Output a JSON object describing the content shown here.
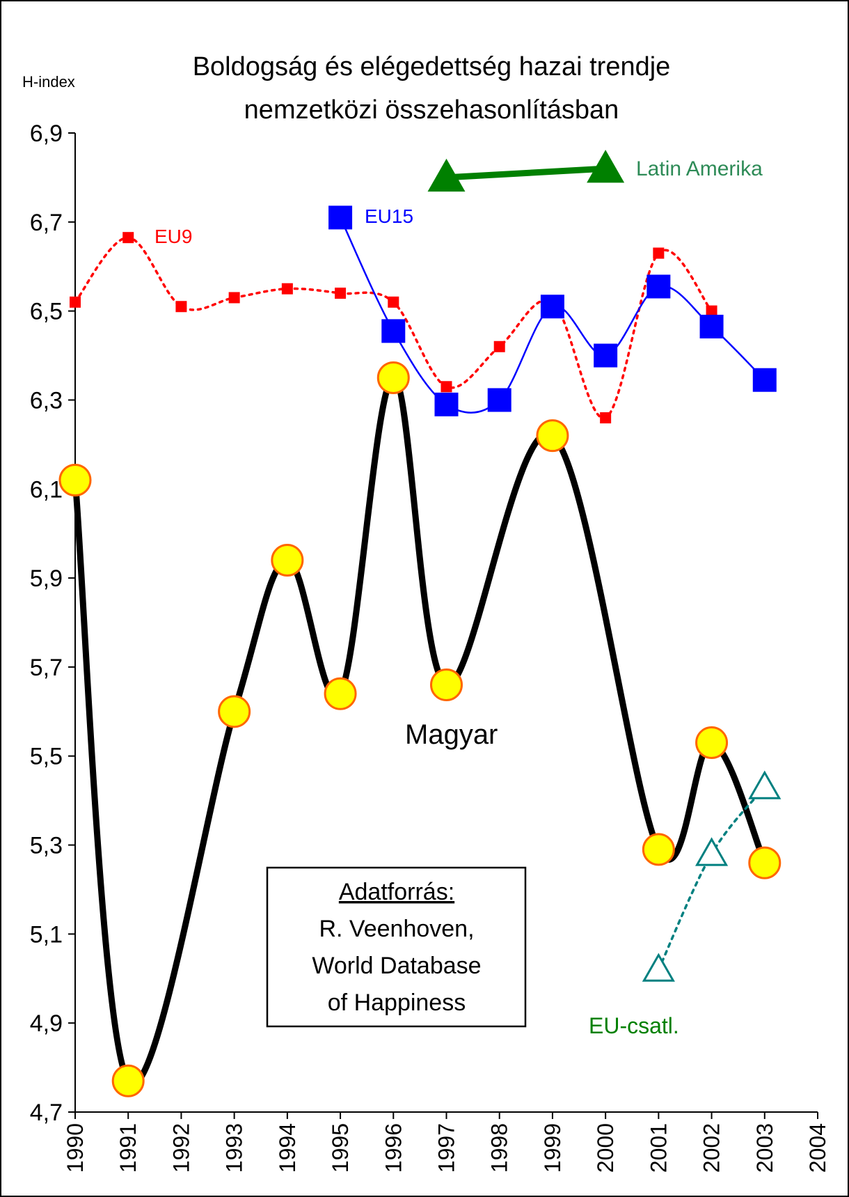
{
  "chart_data": {
    "type": "line",
    "title_lines": [
      "Boldogság és elégedettség hazai trendje",
      "nemzetközi összehasonlításban"
    ],
    "ylabel": "H-index",
    "ylim": [
      4.7,
      6.9
    ],
    "xlim": [
      1990,
      2004
    ],
    "y_ticks": [
      "6,9",
      "6,7",
      "6,5",
      "6,3",
      "6,1",
      "5,9",
      "5,7",
      "5,5",
      "5,3",
      "5,1",
      "4,9",
      "4,7"
    ],
    "x_ticks": [
      "1990",
      "1991",
      "1992",
      "1993",
      "1994",
      "1995",
      "1996",
      "1997",
      "1998",
      "1999",
      "2000",
      "2001",
      "2002",
      "2003",
      "2004"
    ],
    "series": [
      {
        "name": "Magyar",
        "color": "#000000",
        "marker": "circle",
        "marker_fill": "#ffff00",
        "marker_stroke": "#ff6600",
        "points": [
          [
            1990,
            6.12
          ],
          [
            1991,
            4.77
          ],
          [
            1993,
            5.6
          ],
          [
            1994,
            5.94
          ],
          [
            1995,
            5.64
          ],
          [
            1996,
            6.35
          ],
          [
            1997,
            5.66
          ],
          [
            1999,
            6.22
          ],
          [
            2001,
            5.29
          ],
          [
            2002,
            5.53
          ],
          [
            2003,
            5.26
          ]
        ]
      },
      {
        "name": "EU9",
        "color": "#ff0000",
        "marker": "square",
        "points": [
          [
            1990,
            6.52
          ],
          [
            1991,
            6.665
          ],
          [
            1992,
            6.51
          ],
          [
            1993,
            6.53
          ],
          [
            1994,
            6.55
          ],
          [
            1995,
            6.54
          ],
          [
            1996,
            6.52
          ],
          [
            1997,
            6.33
          ],
          [
            1998,
            6.42
          ],
          [
            1999,
            6.52
          ],
          [
            2000,
            6.26
          ],
          [
            2001,
            6.63
          ],
          [
            2002,
            6.5
          ]
        ]
      },
      {
        "name": "EU15",
        "color": "#0000ff",
        "marker": "square",
        "points": [
          [
            1995,
            6.71
          ],
          [
            1996,
            6.455
          ],
          [
            1997,
            6.29
          ],
          [
            1998,
            6.3
          ],
          [
            1999,
            6.51
          ],
          [
            2000,
            6.4
          ],
          [
            2001,
            6.555
          ],
          [
            2002,
            6.465
          ],
          [
            2003,
            6.345
          ]
        ]
      },
      {
        "name": "Latin Amerika",
        "color": "#008000",
        "marker": "triangle",
        "points": [
          [
            1997,
            6.8
          ],
          [
            2000,
            6.82
          ]
        ]
      },
      {
        "name": "EU-csatl.",
        "color": "#008080",
        "marker": "open-triangle",
        "points": [
          [
            2001,
            5.02
          ],
          [
            2002,
            5.28
          ],
          [
            2003,
            5.43
          ]
        ]
      }
    ],
    "labels": {
      "magyar": "Magyar",
      "eu9": "EU9",
      "eu15": "EU15",
      "latin": "Latin Amerika",
      "eucsatl": "EU-csatl."
    },
    "source_box": {
      "heading": "Adatforrás:",
      "lines": [
        "R. Veenhoven,",
        "World Database",
        "of Happiness"
      ]
    },
    "grid": false
  }
}
